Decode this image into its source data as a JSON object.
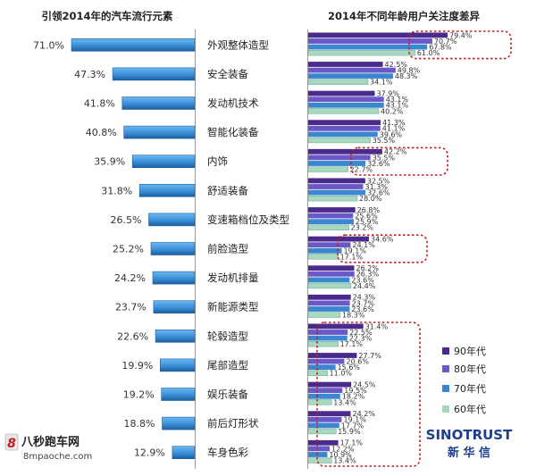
{
  "chart_data": [
    {
      "type": "bar",
      "title": "引领2014年的汽车流行元素",
      "xlabel": "",
      "ylabel": "",
      "categories": [
        "外观整体造型",
        "安全装备",
        "发动机技术",
        "智能化装备",
        "内饰",
        "舒适装备",
        "变速箱档位及类型",
        "前脸造型",
        "发动机排量",
        "新能源类型",
        "轮毂造型",
        "尾部造型",
        "娱乐装备",
        "前后灯形状",
        "车身色彩"
      ],
      "value_labels": [
        "71.0%",
        "47.3%",
        "41.8%",
        "40.8%",
        "35.9%",
        "31.8%",
        "26.5%",
        "25.2%",
        "24.2%",
        "23.7%",
        "22.6%",
        "19.9%",
        "19.2%",
        "18.8%",
        "12.9%"
      ],
      "values": [
        71.0,
        47.3,
        41.8,
        40.8,
        35.9,
        31.8,
        26.5,
        25.2,
        24.2,
        23.7,
        22.6,
        19.9,
        19.2,
        18.8,
        12.9
      ],
      "orientation": "horizontal",
      "direction": "right-to-left",
      "xlim": [
        0,
        75
      ],
      "grid": false
    },
    {
      "type": "bar",
      "title": "2014年不同年龄用户关注度差异",
      "xlabel": "",
      "ylabel": "",
      "orientation": "horizontal",
      "xlim": [
        0,
        80
      ],
      "grid": false,
      "legend": "right",
      "categories": [
        "外观整体造型",
        "安全装备",
        "发动机技术",
        "智能化装备",
        "内饰",
        "舒适装备",
        "变速箱档位及类型",
        "前脸造型",
        "发动机排量",
        "新能源类型",
        "轮毂造型",
        "尾部造型",
        "娱乐装备",
        "前后灯形状",
        "车身色彩"
      ],
      "series": [
        {
          "name": "90年代",
          "color": "#4a2a8a",
          "values": [
            79.4,
            42.5,
            37.9,
            41.3,
            42.2,
            32.5,
            26.8,
            34.6,
            26.2,
            24.3,
            31.4,
            27.7,
            24.5,
            24.2,
            17.1
          ],
          "value_labels": [
            "79.4%",
            "42.5%",
            "37.9%",
            "41.3%",
            "42.2%",
            "32.5%",
            "26.8%",
            "34.6%",
            "26.2%",
            "24.3%",
            "31.4%",
            "27.7%",
            "24.5%",
            "24.2%",
            "17.1%"
          ]
        },
        {
          "name": "80年代",
          "color": "#6a58c8",
          "values": [
            70.7,
            49.8,
            43.1,
            41.1,
            35.5,
            31.3,
            25.6,
            24.1,
            26.3,
            23.7,
            22.5,
            20.6,
            19.5,
            19.1,
            12.2
          ],
          "value_labels": [
            "70.7%",
            "49.8%",
            "43.1%",
            "41.1%",
            "35.5%",
            "31.3%",
            "25.6%",
            "24.1%",
            "26.3%",
            "23.7%",
            "22.5%",
            "20.6%",
            "19.5%",
            "19.1%",
            "12.2%"
          ]
        },
        {
          "name": "70年代",
          "color": "#3a86d0",
          "values": [
            67.8,
            48.3,
            43.1,
            39.6,
            32.6,
            32.6,
            25.9,
            19.1,
            23.6,
            23.6,
            22.3,
            15.6,
            18.2,
            17.7,
            10.9
          ],
          "value_labels": [
            "67.8%",
            "48.3%",
            "43.1%",
            "39.6%",
            "32.6%",
            "32.6%",
            "25.9%",
            "19.1%",
            "23.6%",
            "23.6%",
            "22.3%",
            "15.6%",
            "18.2%",
            "17.7%",
            "10.9%"
          ]
        },
        {
          "name": "60年代",
          "color": "#a8d8c0",
          "values": [
            61.0,
            34.1,
            40.2,
            35.5,
            22.7,
            28.0,
            23.2,
            17.1,
            24.4,
            18.3,
            17.1,
            11.0,
            13.4,
            15.9,
            13.4
          ],
          "value_labels": [
            "61.0%",
            "34.1%",
            "40.2%",
            "35.5%",
            "22.7%",
            "28.0%",
            "23.2%",
            "17.1%",
            "24.4%",
            "18.3%",
            "17.1%",
            "11.0%",
            "13.4%",
            "15.9%",
            "13.4%"
          ]
        }
      ],
      "highlighted_categories": [
        "外观整体造型",
        "内饰",
        "前脸造型",
        "轮毂造型",
        "尾部造型",
        "娱乐装备",
        "前后灯形状",
        "车身色彩"
      ]
    }
  ],
  "colors": {
    "left_bar": "#3a8fd8",
    "left_bar_dark": "#1d5e9e",
    "highlight_box": "#c41e1e",
    "axis": "#9a9a9a",
    "text": "#222222",
    "value_text": "#333333"
  },
  "watermark": {
    "logo_icon": "site-logo-icon",
    "logo_char": "8",
    "name": "八秒跑车网",
    "url": "8mpaoche.com"
  },
  "brand": {
    "name": "SINOTRUST",
    "subtitle": "新 华 信",
    "color": "#1d3f8a"
  }
}
